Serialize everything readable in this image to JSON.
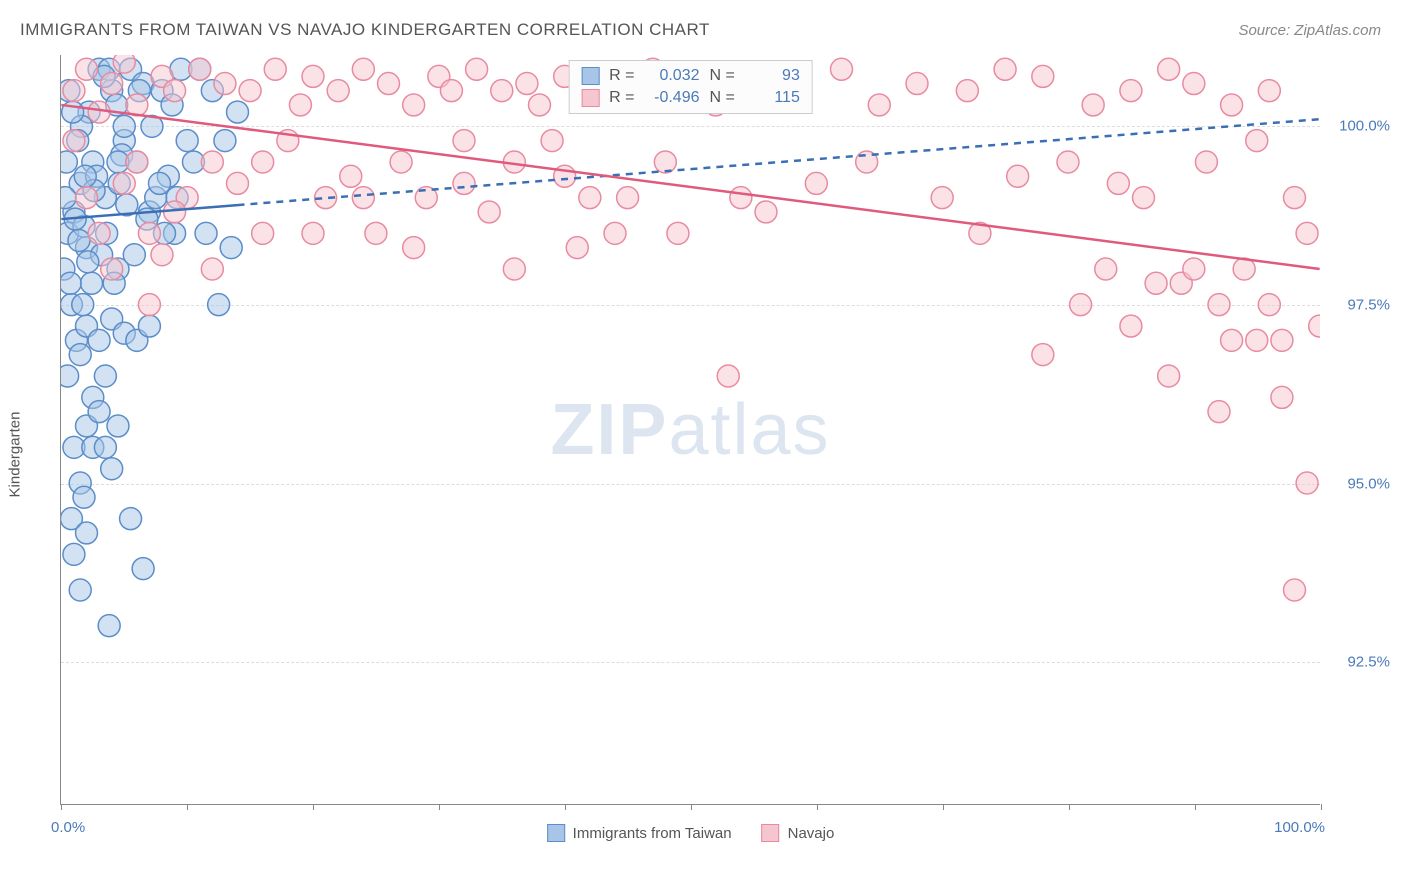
{
  "title": "IMMIGRANTS FROM TAIWAN VS NAVAJO KINDERGARTEN CORRELATION CHART",
  "source": "Source: ZipAtlas.com",
  "ylabel": "Kindergarten",
  "watermark_bold": "ZIP",
  "watermark_rest": "atlas",
  "chart": {
    "type": "scatter",
    "xlim": [
      0,
      100
    ],
    "ylim": [
      90.5,
      101
    ],
    "xtick_labels": {
      "left": "0.0%",
      "right": "100.0%"
    },
    "xtick_positions": [
      0,
      10,
      20,
      30,
      40,
      50,
      60,
      70,
      80,
      90,
      100
    ],
    "ytick_grid": [
      100.0,
      97.5,
      95.0,
      92.5
    ],
    "ytick_labels": [
      "100.0%",
      "97.5%",
      "95.0%",
      "92.5%"
    ],
    "series": [
      {
        "name": "Immigrants from Taiwan",
        "color_fill": "#a8c5e8",
        "color_stroke": "#5b8dc9",
        "fill_opacity": 0.5,
        "marker_radius": 11,
        "R": "0.032",
        "N": "93",
        "trend": {
          "x1": 0,
          "y1": 98.7,
          "x2": 100,
          "y2": 100.1,
          "solid_until_x": 14,
          "color": "#3a6eb5",
          "width": 2.5,
          "dash": "7,6"
        },
        "points": [
          [
            0.5,
            98.5
          ],
          [
            1,
            98.8
          ],
          [
            1.5,
            99.2
          ],
          [
            2,
            98.3
          ],
          [
            2.5,
            99.5
          ],
          [
            3,
            100.8
          ],
          [
            3.5,
            99.0
          ],
          [
            4,
            100.5
          ],
          [
            4.5,
            98.0
          ],
          [
            5,
            99.8
          ],
          [
            0.8,
            97.5
          ],
          [
            1.2,
            97.0
          ],
          [
            1.8,
            98.6
          ],
          [
            2.2,
            100.2
          ],
          [
            2.8,
            99.3
          ],
          [
            3.2,
            98.2
          ],
          [
            3.8,
            100.8
          ],
          [
            4.2,
            97.8
          ],
          [
            4.8,
            99.6
          ],
          [
            5.2,
            98.9
          ],
          [
            0.3,
            99.0
          ],
          [
            0.6,
            100.5
          ],
          [
            1.4,
            98.4
          ],
          [
            1.6,
            100.0
          ],
          [
            2.4,
            97.8
          ],
          [
            2.6,
            99.1
          ],
          [
            3.4,
            100.7
          ],
          [
            3.6,
            98.5
          ],
          [
            4.4,
            100.3
          ],
          [
            4.6,
            99.2
          ],
          [
            5.5,
            100.8
          ],
          [
            6,
            99.5
          ],
          [
            6.5,
            100.6
          ],
          [
            7,
            98.8
          ],
          [
            7.5,
            99.0
          ],
          [
            8,
            100.5
          ],
          [
            8.5,
            99.3
          ],
          [
            9,
            98.5
          ],
          [
            9.5,
            100.8
          ],
          [
            10,
            99.8
          ],
          [
            0.5,
            96.5
          ],
          [
            1.5,
            96.8
          ],
          [
            2,
            97.2
          ],
          [
            2.5,
            96.2
          ],
          [
            3,
            97.0
          ],
          [
            3.5,
            96.5
          ],
          [
            4,
            97.3
          ],
          [
            5,
            97.1
          ],
          [
            6,
            97.0
          ],
          [
            7,
            97.2
          ],
          [
            1,
            95.5
          ],
          [
            2,
            95.8
          ],
          [
            3,
            96.0
          ],
          [
            4,
            95.2
          ],
          [
            1.5,
            95.0
          ],
          [
            2.5,
            95.5
          ],
          [
            0.8,
            94.5
          ],
          [
            1.8,
            94.8
          ],
          [
            1,
            94.0
          ],
          [
            2,
            94.3
          ],
          [
            1.5,
            93.5
          ],
          [
            3.5,
            95.5
          ],
          [
            4.5,
            95.8
          ],
          [
            5.5,
            94.5
          ],
          [
            6.5,
            93.8
          ],
          [
            3.8,
            93.0
          ],
          [
            4.5,
            99.5
          ],
          [
            5.0,
            100.0
          ],
          [
            5.8,
            98.2
          ],
          [
            6.2,
            100.5
          ],
          [
            6.8,
            98.7
          ],
          [
            7.2,
            100.0
          ],
          [
            7.8,
            99.2
          ],
          [
            8.2,
            98.5
          ],
          [
            8.8,
            100.3
          ],
          [
            9.2,
            99.0
          ],
          [
            10.5,
            99.5
          ],
          [
            11,
            100.8
          ],
          [
            11.5,
            98.5
          ],
          [
            12,
            100.5
          ],
          [
            12.5,
            97.5
          ],
          [
            13,
            99.8
          ],
          [
            13.5,
            98.3
          ],
          [
            14,
            100.2
          ],
          [
            0.2,
            98.0
          ],
          [
            0.4,
            99.5
          ],
          [
            0.7,
            97.8
          ],
          [
            0.9,
            100.2
          ],
          [
            1.1,
            98.7
          ],
          [
            1.3,
            99.8
          ],
          [
            1.7,
            97.5
          ],
          [
            1.9,
            99.3
          ],
          [
            2.1,
            98.1
          ]
        ]
      },
      {
        "name": "Navajo",
        "color_fill": "#f5c5d0",
        "color_stroke": "#e88ba0",
        "fill_opacity": 0.5,
        "marker_radius": 11,
        "R": "-0.496",
        "N": "115",
        "trend": {
          "x1": 0,
          "y1": 100.3,
          "x2": 100,
          "y2": 98.0,
          "solid_until_x": 100,
          "color": "#e05a7e",
          "width": 2.5,
          "dash": ""
        },
        "points": [
          [
            1,
            100.5
          ],
          [
            2,
            100.8
          ],
          [
            3,
            100.2
          ],
          [
            4,
            100.6
          ],
          [
            5,
            100.9
          ],
          [
            6,
            100.3
          ],
          [
            7,
            98.5
          ],
          [
            8,
            100.7
          ],
          [
            9,
            100.5
          ],
          [
            10,
            99.0
          ],
          [
            11,
            100.8
          ],
          [
            12,
            99.5
          ],
          [
            13,
            100.6
          ],
          [
            14,
            99.2
          ],
          [
            15,
            100.5
          ],
          [
            16,
            98.5
          ],
          [
            17,
            100.8
          ],
          [
            18,
            99.8
          ],
          [
            19,
            100.3
          ],
          [
            20,
            100.7
          ],
          [
            21,
            99.0
          ],
          [
            22,
            100.5
          ],
          [
            23,
            99.3
          ],
          [
            24,
            100.8
          ],
          [
            25,
            98.5
          ],
          [
            26,
            100.6
          ],
          [
            27,
            99.5
          ],
          [
            28,
            100.3
          ],
          [
            29,
            99.0
          ],
          [
            30,
            100.7
          ],
          [
            31,
            100.5
          ],
          [
            32,
            99.2
          ],
          [
            33,
            100.8
          ],
          [
            34,
            98.8
          ],
          [
            35,
            100.5
          ],
          [
            36,
            99.5
          ],
          [
            37,
            100.6
          ],
          [
            38,
            100.3
          ],
          [
            39,
            99.8
          ],
          [
            40,
            100.7
          ],
          [
            42,
            99.0
          ],
          [
            43,
            100.5
          ],
          [
            44,
            98.5
          ],
          [
            47,
            100.8
          ],
          [
            48,
            99.5
          ],
          [
            50,
            100.6
          ],
          [
            52,
            100.3
          ],
          [
            54,
            99.0
          ],
          [
            55,
            100.7
          ],
          [
            56,
            98.8
          ],
          [
            58,
            100.5
          ],
          [
            60,
            99.2
          ],
          [
            62,
            100.8
          ],
          [
            64,
            99.5
          ],
          [
            65,
            100.3
          ],
          [
            68,
            100.6
          ],
          [
            70,
            99.0
          ],
          [
            72,
            100.5
          ],
          [
            73,
            98.5
          ],
          [
            75,
            100.8
          ],
          [
            76,
            99.3
          ],
          [
            78,
            100.7
          ],
          [
            80,
            99.5
          ],
          [
            82,
            100.3
          ],
          [
            83,
            98.0
          ],
          [
            85,
            100.5
          ],
          [
            86,
            99.0
          ],
          [
            88,
            100.8
          ],
          [
            89,
            97.8
          ],
          [
            90,
            100.6
          ],
          [
            91,
            99.5
          ],
          [
            92,
            97.5
          ],
          [
            93,
            100.3
          ],
          [
            94,
            98.0
          ],
          [
            95,
            99.8
          ],
          [
            96,
            100.5
          ],
          [
            97,
            97.0
          ],
          [
            98,
            99.0
          ],
          [
            99,
            98.5
          ],
          [
            100,
            97.2
          ],
          [
            85,
            97.2
          ],
          [
            78,
            96.8
          ],
          [
            88,
            96.5
          ],
          [
            92,
            96.0
          ],
          [
            95,
            97.0
          ],
          [
            97,
            96.2
          ],
          [
            99,
            95.0
          ],
          [
            98,
            93.5
          ],
          [
            96,
            97.5
          ],
          [
            93,
            97.0
          ],
          [
            90,
            98.0
          ],
          [
            87,
            97.8
          ],
          [
            84,
            99.2
          ],
          [
            81,
            97.5
          ],
          [
            53,
            96.5
          ],
          [
            41,
            98.3
          ],
          [
            45,
            99.0
          ],
          [
            49,
            98.5
          ],
          [
            3,
            98.5
          ],
          [
            5,
            99.2
          ],
          [
            7,
            97.5
          ],
          [
            2,
            99.0
          ],
          [
            4,
            98.0
          ],
          [
            6,
            99.5
          ],
          [
            8,
            98.2
          ],
          [
            1,
            99.8
          ],
          [
            9,
            98.8
          ],
          [
            12,
            98.0
          ],
          [
            16,
            99.5
          ],
          [
            20,
            98.5
          ],
          [
            24,
            99.0
          ],
          [
            28,
            98.3
          ],
          [
            32,
            99.8
          ],
          [
            36,
            98.0
          ],
          [
            40,
            99.3
          ]
        ]
      }
    ]
  },
  "legend_bottom": [
    {
      "label": "Immigrants from Taiwan",
      "fill": "#a8c5e8",
      "stroke": "#5b8dc9"
    },
    {
      "label": "Navajo",
      "fill": "#f5c5d0",
      "stroke": "#e88ba0"
    }
  ]
}
